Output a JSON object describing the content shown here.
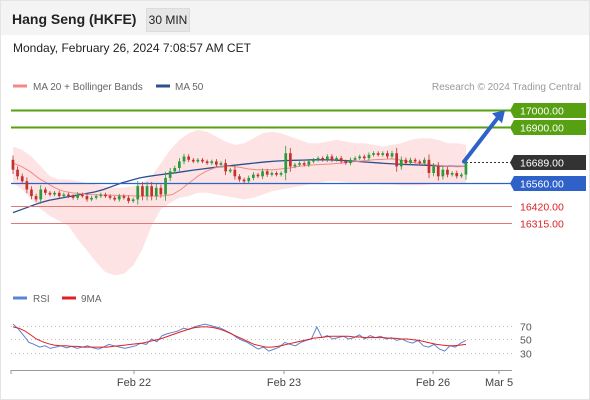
{
  "header": {
    "title": "Hang Seng (HKFE)",
    "interval": "30 MIN",
    "datetime": "Monday, February 26, 2024 7:08:57 AM CET"
  },
  "legend": {
    "ma20": "MA 20 + Bollinger Bands",
    "ma50": "MA 50",
    "credit": "Research © 2024 Trading Central",
    "rsi": "RSI",
    "rsi_ma": "9MA"
  },
  "colors": {
    "resistance": "#56a012",
    "support_blue": "#2f62c9",
    "support_red": "#e07878",
    "candle_up": "#2a9a3a",
    "candle_down": "#c4312c",
    "bollinger": "#fde0e0",
    "ma20": "#f08a8a",
    "ma50": "#2b4f8f",
    "rsi": "#5b84d4",
    "rsi_ma": "#dd2222",
    "last_price": "#333333"
  },
  "chart_data": {
    "type": "candlestick",
    "ylim": [
      15960,
      17080
    ],
    "x_labels": [
      "Feb 22",
      "Feb 23",
      "Feb 26",
      "Mar 5"
    ],
    "levels": [
      {
        "label": "17000.00",
        "value": 17000,
        "kind": "resistance"
      },
      {
        "label": "16900.00",
        "value": 16900,
        "kind": "resistance"
      },
      {
        "label": "16689.00",
        "value": 16689,
        "kind": "last"
      },
      {
        "label": "16560.00",
        "value": 16560,
        "kind": "pivot"
      },
      {
        "label": "16420.00",
        "value": 16420,
        "kind": "support"
      },
      {
        "label": "16315.00",
        "value": 16315,
        "kind": "support"
      }
    ],
    "candles": [
      {
        "o": 16700,
        "c": 16640
      },
      {
        "o": 16640,
        "c": 16600
      },
      {
        "o": 16600,
        "c": 16570
      },
      {
        "o": 16570,
        "c": 16520
      },
      {
        "o": 16520,
        "c": 16480
      },
      {
        "o": 16480,
        "c": 16460
      },
      {
        "o": 16460,
        "c": 16520
      },
      {
        "o": 16520,
        "c": 16500
      },
      {
        "o": 16500,
        "c": 16490
      },
      {
        "o": 16490,
        "c": 16500
      },
      {
        "o": 16500,
        "c": 16480
      },
      {
        "o": 16480,
        "c": 16490
      },
      {
        "o": 16490,
        "c": 16480
      },
      {
        "o": 16480,
        "c": 16470
      },
      {
        "o": 16470,
        "c": 16490
      },
      {
        "o": 16490,
        "c": 16480
      },
      {
        "o": 16480,
        "c": 16460
      },
      {
        "o": 16460,
        "c": 16470
      },
      {
        "o": 16470,
        "c": 16480
      },
      {
        "o": 16480,
        "c": 16490
      },
      {
        "o": 16490,
        "c": 16480
      },
      {
        "o": 16480,
        "c": 16470
      },
      {
        "o": 16470,
        "c": 16460
      },
      {
        "o": 16460,
        "c": 16480
      },
      {
        "o": 16480,
        "c": 16470
      },
      {
        "o": 16470,
        "c": 16450
      },
      {
        "o": 16450,
        "c": 16460
      },
      {
        "o": 16460,
        "c": 16540
      },
      {
        "o": 16540,
        "c": 16480
      },
      {
        "o": 16480,
        "c": 16540
      },
      {
        "o": 16540,
        "c": 16480
      },
      {
        "o": 16480,
        "c": 16530
      },
      {
        "o": 16530,
        "c": 16490
      },
      {
        "o": 16490,
        "c": 16590
      },
      {
        "o": 16590,
        "c": 16630
      },
      {
        "o": 16630,
        "c": 16650
      },
      {
        "o": 16650,
        "c": 16690
      },
      {
        "o": 16690,
        "c": 16720
      },
      {
        "o": 16720,
        "c": 16700
      },
      {
        "o": 16700,
        "c": 16690
      },
      {
        "o": 16690,
        "c": 16700
      },
      {
        "o": 16700,
        "c": 16690
      },
      {
        "o": 16690,
        "c": 16680
      },
      {
        "o": 16680,
        "c": 16690
      },
      {
        "o": 16690,
        "c": 16670
      },
      {
        "o": 16670,
        "c": 16680
      },
      {
        "o": 16680,
        "c": 16630
      },
      {
        "o": 16630,
        "c": 16640
      },
      {
        "o": 16640,
        "c": 16600
      },
      {
        "o": 16600,
        "c": 16580
      },
      {
        "o": 16580,
        "c": 16570
      },
      {
        "o": 16570,
        "c": 16590
      },
      {
        "o": 16590,
        "c": 16610
      },
      {
        "o": 16610,
        "c": 16600
      },
      {
        "o": 16600,
        "c": 16630
      },
      {
        "o": 16630,
        "c": 16610
      },
      {
        "o": 16610,
        "c": 16620
      },
      {
        "o": 16620,
        "c": 16610
      },
      {
        "o": 16610,
        "c": 16620
      },
      {
        "o": 16620,
        "c": 16740
      },
      {
        "o": 16740,
        "c": 16660
      },
      {
        "o": 16660,
        "c": 16670
      },
      {
        "o": 16670,
        "c": 16680
      },
      {
        "o": 16680,
        "c": 16670
      },
      {
        "o": 16670,
        "c": 16690
      },
      {
        "o": 16690,
        "c": 16700
      },
      {
        "o": 16700,
        "c": 16710
      },
      {
        "o": 16710,
        "c": 16700
      },
      {
        "o": 16700,
        "c": 16720
      },
      {
        "o": 16720,
        "c": 16700
      },
      {
        "o": 16700,
        "c": 16710
      },
      {
        "o": 16710,
        "c": 16690
      },
      {
        "o": 16690,
        "c": 16680
      },
      {
        "o": 16680,
        "c": 16700
      },
      {
        "o": 16700,
        "c": 16710
      },
      {
        "o": 16710,
        "c": 16720
      },
      {
        "o": 16720,
        "c": 16710
      },
      {
        "o": 16710,
        "c": 16730
      },
      {
        "o": 16730,
        "c": 16740
      },
      {
        "o": 16740,
        "c": 16730
      },
      {
        "o": 16730,
        "c": 16740
      },
      {
        "o": 16740,
        "c": 16720
      },
      {
        "o": 16720,
        "c": 16740
      },
      {
        "o": 16740,
        "c": 16660
      },
      {
        "o": 16660,
        "c": 16700
      },
      {
        "o": 16700,
        "c": 16680
      },
      {
        "o": 16680,
        "c": 16700
      },
      {
        "o": 16700,
        "c": 16690
      },
      {
        "o": 16690,
        "c": 16680
      },
      {
        "o": 16680,
        "c": 16700
      },
      {
        "o": 16700,
        "c": 16620
      },
      {
        "o": 16620,
        "c": 16660
      },
      {
        "o": 16660,
        "c": 16600
      },
      {
        "o": 16600,
        "c": 16640
      },
      {
        "o": 16640,
        "c": 16610
      },
      {
        "o": 16610,
        "c": 16620
      },
      {
        "o": 16620,
        "c": 16600
      },
      {
        "o": 16600,
        "c": 16610
      },
      {
        "o": 16610,
        "c": 16689
      }
    ],
    "ma20": [
      16680,
      16660,
      16630,
      16590,
      16560,
      16530,
      16510,
      16500,
      16495,
      16490,
      16488,
      16485,
      16485,
      16483,
      16482,
      16480,
      16480,
      16480,
      16482,
      16490,
      16520,
      16560,
      16600,
      16630,
      16650,
      16660,
      16660,
      16655,
      16645,
      16640,
      16640,
      16640,
      16645,
      16650,
      16660,
      16665,
      16670,
      16672,
      16675,
      16680,
      16685,
      16690,
      16695,
      16700,
      16702,
      16705,
      16700,
      16690,
      16680,
      16675,
      16670,
      16665,
      16660,
      16658,
      16660
    ],
    "ma50": [
      16380,
      16400,
      16420,
      16440,
      16455,
      16465,
      16475,
      16485,
      16495,
      16505,
      16520,
      16540,
      16560,
      16575,
      16590,
      16600,
      16608,
      16615,
      16622,
      16630,
      16638,
      16645,
      16652,
      16658,
      16664,
      16670,
      16676,
      16682,
      16688,
      16692,
      16695,
      16697,
      16698,
      16700,
      16700,
      16699,
      16697,
      16694,
      16690,
      16686,
      16682,
      16678,
      16675,
      16672,
      16670,
      16668,
      16665,
      16663,
      16661,
      16660,
      16660
    ],
    "bb_upper": [
      16780,
      16760,
      16720,
      16660,
      16600,
      16580,
      16580,
      16570,
      16560,
      16550,
      16540,
      16530,
      16530,
      16540,
      16560,
      16600,
      16680,
      16760,
      16820,
      16860,
      16880,
      16870,
      16840,
      16810,
      16790,
      16800,
      16830,
      16860,
      16870,
      16860,
      16840,
      16820,
      16800,
      16800,
      16810,
      16820,
      16810,
      16800,
      16800,
      16790,
      16780,
      16790,
      16800,
      16820,
      16830,
      16830,
      16820,
      16800,
      16800,
      16790
    ],
    "bb_lower": [
      16560,
      16520,
      16460,
      16400,
      16360,
      16330,
      16300,
      16220,
      16150,
      16080,
      16020,
      16000,
      16010,
      16060,
      16160,
      16300,
      16400,
      16440,
      16470,
      16480,
      16500,
      16500,
      16490,
      16480,
      16470,
      16460,
      16470,
      16490,
      16510,
      16520,
      16530,
      16540,
      16550,
      16560,
      16570,
      16570,
      16565,
      16560,
      16560,
      16555,
      16550,
      16550,
      16545,
      16545,
      16545,
      16550,
      16555,
      16560,
      16560,
      16560
    ],
    "forecast": {
      "from": 16689,
      "to": 17000
    },
    "rsi": {
      "ylim": [
        10,
        90
      ],
      "ticks": [
        70,
        50,
        30
      ],
      "rsi": [
        72,
        65,
        55,
        45,
        42,
        38,
        40,
        36,
        38,
        40,
        37,
        39,
        36,
        38,
        40,
        37,
        35,
        38,
        42,
        40,
        38,
        36,
        38,
        40,
        44,
        42,
        50,
        46,
        55,
        58,
        60,
        62,
        66,
        64,
        68,
        70,
        72,
        70,
        68,
        66,
        62,
        58,
        52,
        48,
        45,
        40,
        35,
        38,
        32,
        35,
        38,
        45,
        42,
        40,
        45,
        48,
        50,
        68,
        52,
        55,
        50,
        52,
        54,
        50,
        52,
        56,
        50,
        55,
        52,
        54,
        50,
        52,
        48,
        50,
        46,
        44,
        48,
        40,
        38,
        42,
        35,
        32,
        40,
        38,
        44,
        48
      ],
      "ma": [
        68,
        66,
        62,
        56,
        50,
        46,
        43,
        41,
        40,
        40,
        39,
        39,
        38,
        38,
        38,
        38,
        38,
        39,
        40,
        41,
        42,
        43,
        44,
        46,
        48,
        50,
        53,
        56,
        59,
        62,
        65,
        67,
        68,
        68,
        67,
        65,
        62,
        58,
        54,
        50,
        46,
        42,
        40,
        38,
        38,
        39,
        41,
        43,
        45,
        47,
        49,
        51,
        52,
        53,
        54,
        54,
        54,
        54,
        53,
        53,
        52,
        52,
        52,
        52,
        51,
        51,
        50,
        50,
        49,
        48,
        46,
        44,
        42,
        41,
        40,
        40,
        41,
        42
      ]
    }
  }
}
